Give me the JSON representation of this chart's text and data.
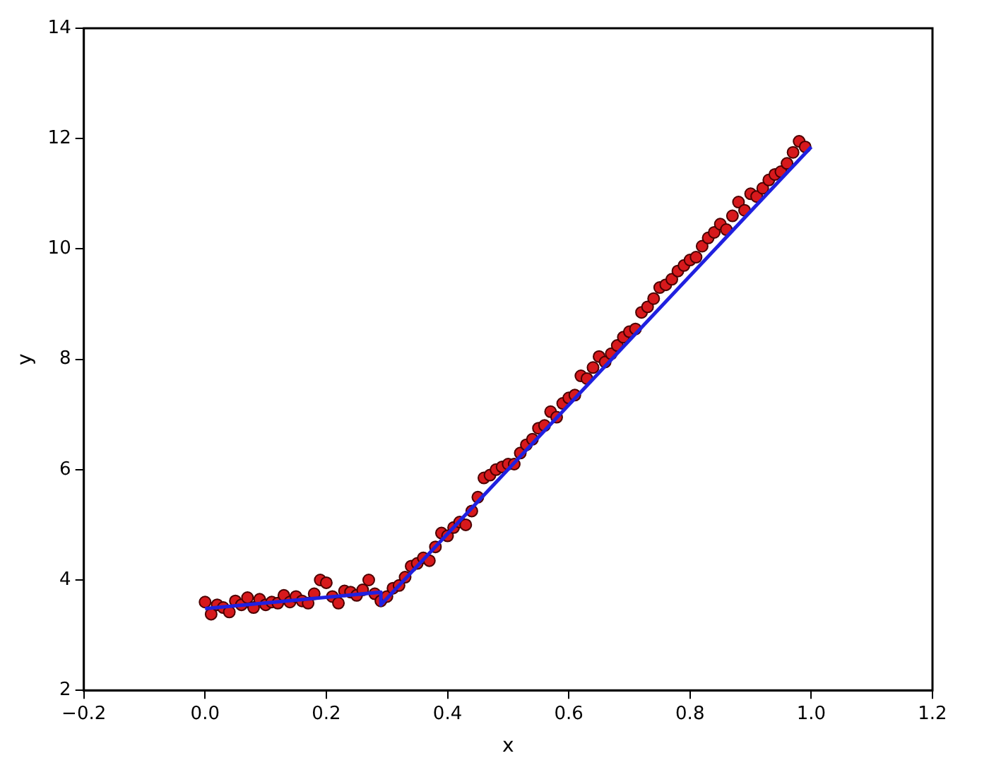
{
  "chart_data": {
    "type": "scatter",
    "xlabel": "x",
    "ylabel": "y",
    "xlim": [
      -0.2,
      1.2
    ],
    "ylim": [
      2,
      14
    ],
    "xticks": [
      {
        "value": -0.2,
        "label": "−0.2"
      },
      {
        "value": 0,
        "label": "0.0"
      },
      0.2,
      0.4,
      0.6,
      0.8,
      {
        "value": 1,
        "label": "1.0"
      },
      1.2
    ],
    "yticks": [
      2,
      4,
      6,
      8,
      10,
      12,
      14
    ],
    "grid": false,
    "legend": false,
    "series": [
      {
        "color": "#d7191c",
        "marker": "circle",
        "x": [
          0,
          0.01,
          0.02,
          0.03,
          0.04,
          0.05,
          0.06,
          0.07,
          0.08,
          0.09,
          0.1,
          0.11,
          0.12,
          0.13,
          0.14,
          0.15,
          0.16,
          0.17,
          0.18,
          0.19,
          0.2,
          0.21,
          0.22,
          0.23,
          0.24,
          0.25,
          0.26,
          0.27,
          0.28,
          0.29,
          0.3,
          0.31,
          0.32,
          0.33,
          0.34,
          0.35,
          0.36,
          0.37,
          0.38,
          0.39,
          0.4,
          0.41,
          0.42,
          0.43,
          0.44,
          0.45,
          0.46,
          0.47,
          0.48,
          0.49,
          0.5,
          0.51,
          0.52,
          0.53,
          0.54,
          0.55,
          0.56,
          0.57,
          0.58,
          0.59,
          0.6,
          0.61,
          0.62,
          0.63,
          0.64,
          0.65,
          0.66,
          0.67,
          0.68,
          0.69,
          0.7,
          0.71,
          0.72,
          0.73,
          0.74,
          0.75,
          0.76,
          0.77,
          0.78,
          0.79,
          0.8,
          0.81,
          0.82,
          0.83,
          0.84,
          0.85,
          0.86,
          0.87,
          0.88,
          0.89,
          0.9,
          0.91,
          0.92,
          0.93,
          0.94,
          0.95,
          0.96,
          0.97,
          0.98,
          0.99
        ],
        "values": [
          3.6,
          3.38,
          3.55,
          3.5,
          3.42,
          3.62,
          3.55,
          3.68,
          3.5,
          3.65,
          3.55,
          3.6,
          3.58,
          3.72,
          3.6,
          3.7,
          3.62,
          3.58,
          3.75,
          4.0,
          3.95,
          3.7,
          3.58,
          3.8,
          3.78,
          3.72,
          3.82,
          4.0,
          3.75,
          3.62,
          3.7,
          3.85,
          3.9,
          4.05,
          4.25,
          4.3,
          4.4,
          4.35,
          4.6,
          4.85,
          4.8,
          4.95,
          5.05,
          5.0,
          5.25,
          5.5,
          5.85,
          5.9,
          6.0,
          6.05,
          6.1,
          6.1,
          6.3,
          6.45,
          6.55,
          6.75,
          6.8,
          7.05,
          6.95,
          7.2,
          7.3,
          7.35,
          7.7,
          7.65,
          7.85,
          8.05,
          7.95,
          8.1,
          8.25,
          8.4,
          8.5,
          8.55,
          8.85,
          8.95,
          9.1,
          9.3,
          9.35,
          9.45,
          9.6,
          9.7,
          9.8,
          9.85,
          10.05,
          10.2,
          10.3,
          10.45,
          10.35,
          10.6,
          10.85,
          10.7,
          11.0,
          10.95,
          11.1,
          11.25,
          11.35,
          11.4,
          11.55,
          11.75,
          11.95,
          11.85
        ]
      },
      {
        "type": "line",
        "color": "#2020e0",
        "marker": "none",
        "line_style": "solid",
        "x": [
          0,
          0.29,
          0.29,
          1.0
        ],
        "values": [
          3.48,
          3.78,
          3.55,
          11.85
        ]
      }
    ]
  }
}
